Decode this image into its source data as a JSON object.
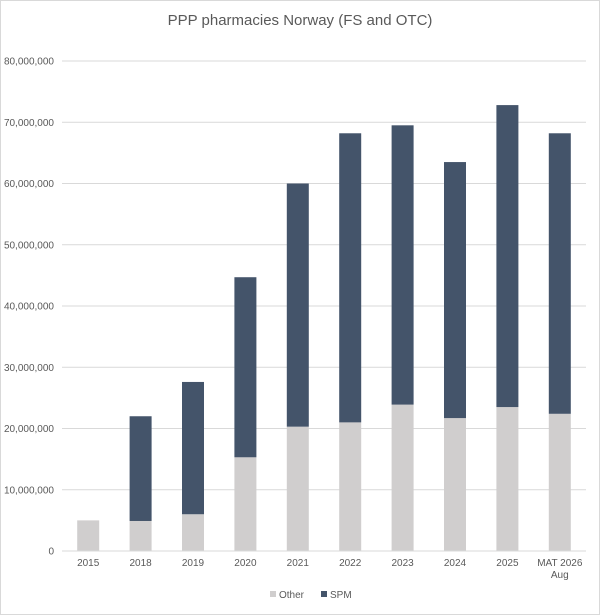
{
  "chart_data": {
    "type": "bar",
    "stacked": true,
    "title": "PPP pharmacies Norway (FS and OTC)",
    "xlabel": "",
    "ylabel": "",
    "categories": [
      "2015",
      "2018",
      "2019",
      "2020",
      "2021",
      "2022",
      "2023",
      "2024",
      "2025",
      "MAT 2026 Aug"
    ],
    "series": [
      {
        "name": "Other",
        "color": "#d0cece",
        "values": [
          5000000,
          4900000,
          6000000,
          15300000,
          20300000,
          21000000,
          23900000,
          21700000,
          23500000,
          22400000
        ]
      },
      {
        "name": "SPM",
        "color": "#44546a",
        "values": [
          0,
          17100000,
          21600000,
          29400000,
          39700000,
          47200000,
          45600000,
          41800000,
          49300000,
          45800000
        ]
      }
    ],
    "ylim": [
      0,
      80000000
    ],
    "yticks": [
      "0",
      "10,000,000",
      "20,000,000",
      "30,000,000",
      "40,000,000",
      "50,000,000",
      "60,000,000",
      "70,000,000",
      "80,000,000"
    ],
    "grid": true,
    "legend_position": "bottom"
  }
}
